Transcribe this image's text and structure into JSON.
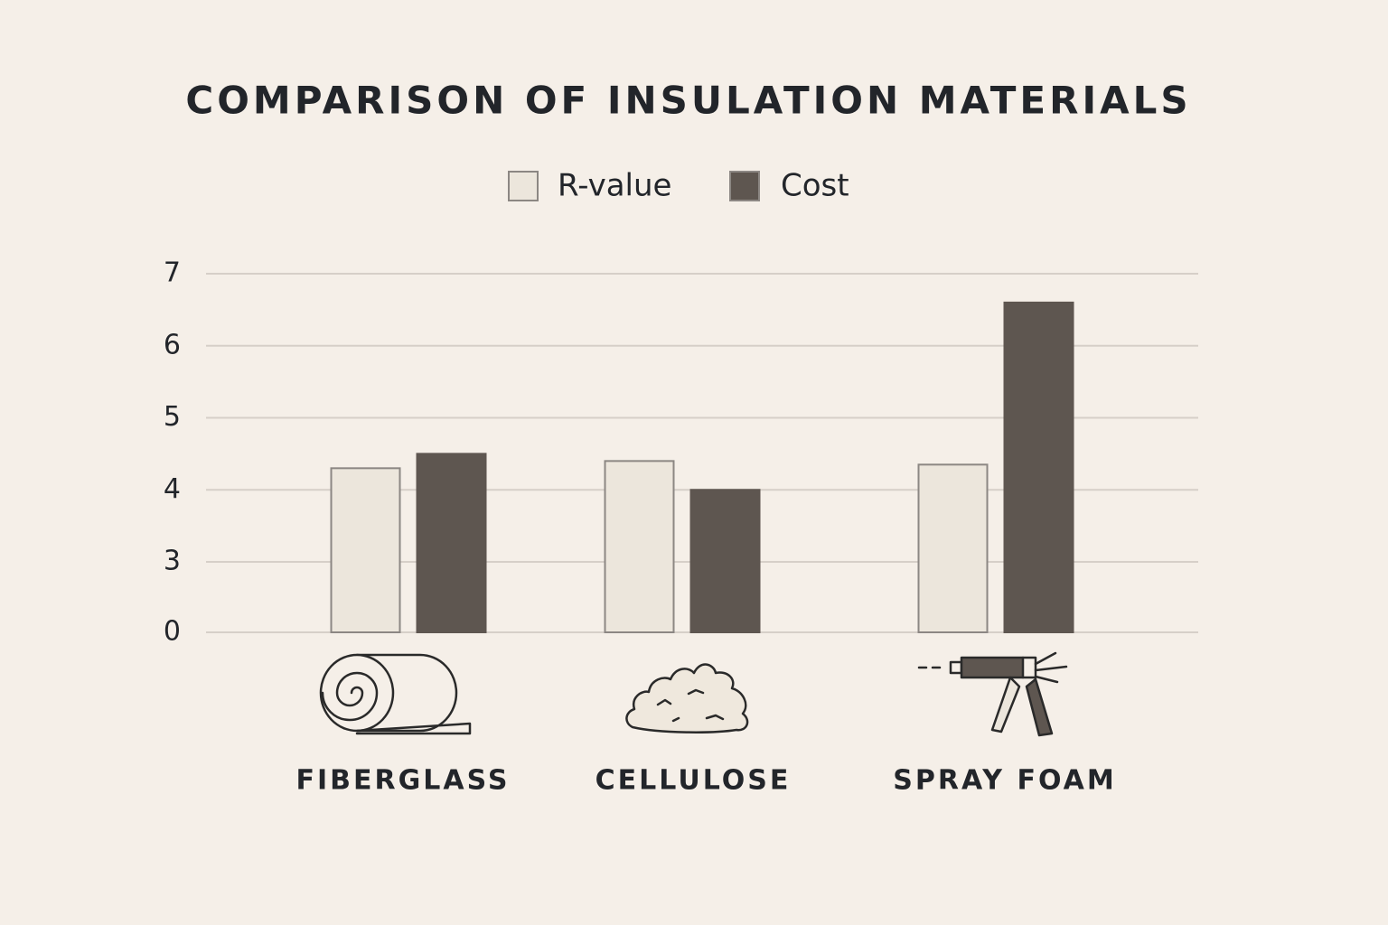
{
  "chart_data": {
    "type": "bar",
    "title": "COMPARISON OF INSULATION MATERIALS",
    "categories": [
      "FIBERGLASS",
      "CELLULOSE",
      "SPRAY FOAM"
    ],
    "series": [
      {
        "name": "R-value",
        "color": "#ece6dc",
        "values": [
          4.3,
          4.4,
          4.35
        ]
      },
      {
        "name": "Cost",
        "color": "#5e5650",
        "values": [
          4.5,
          4.0,
          6.6
        ]
      }
    ],
    "ylim": [
      0,
      7
    ],
    "yticks": [
      0,
      3,
      4,
      5,
      6,
      7
    ],
    "grid": true
  }
}
